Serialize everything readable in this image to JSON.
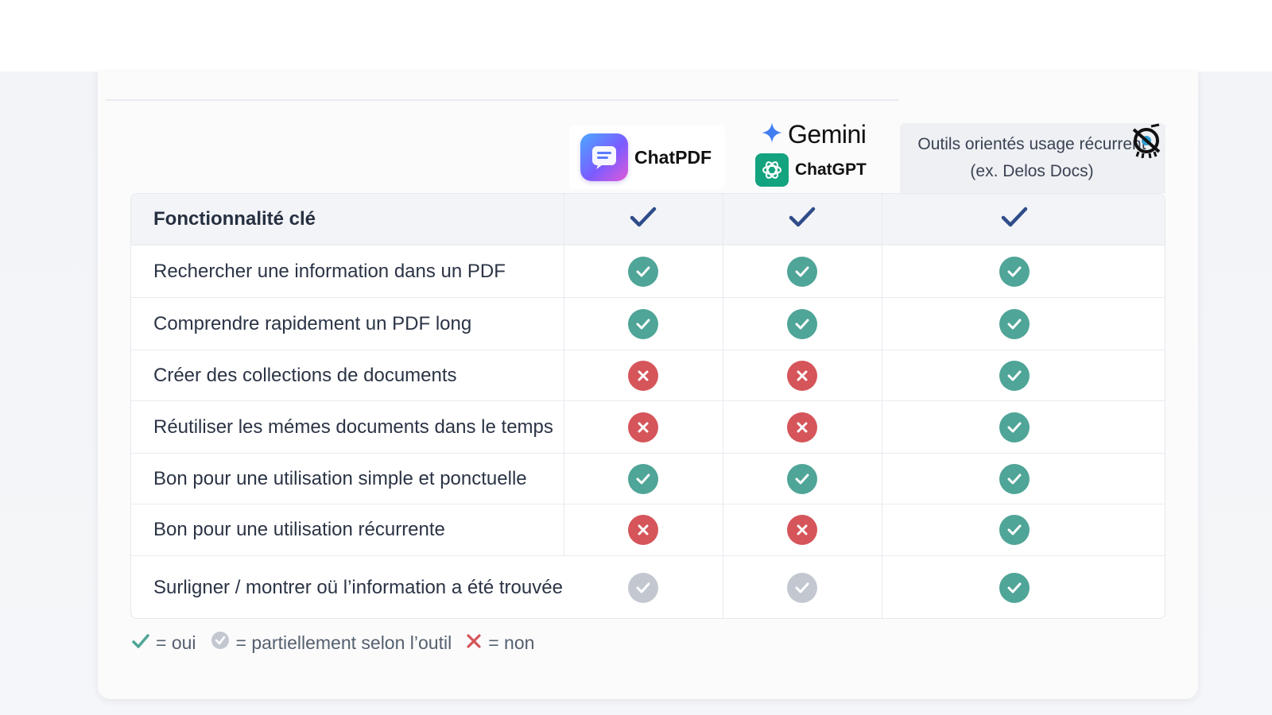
{
  "header": {
    "chatpdf_label": "ChatPDF",
    "gemini_label": "Gemini",
    "chatgpt_label": "ChatGPT",
    "outils_label": "Outils orientés usage récurrent (ex. Delos Docs)"
  },
  "table": {
    "rows": [
      {
        "label": "Fonctionnalité clé",
        "values": [
          "yes-header",
          "yes-header",
          "yes-header"
        ]
      },
      {
        "label": "Rechercher une information dans un PDF",
        "values": [
          "yes",
          "yes",
          "yes"
        ]
      },
      {
        "label": "Comprendre rapidement un PDF long",
        "values": [
          "yes",
          "yes",
          "yes"
        ]
      },
      {
        "label": "Créer des collections de documents",
        "values": [
          "no",
          "no",
          "yes"
        ]
      },
      {
        "label": "Réutiliser les mémes documents dans le temps",
        "values": [
          "no",
          "no",
          "yes"
        ]
      },
      {
        "label": "Bon pour une utilisation simple et ponctuelle",
        "values": [
          "yes",
          "yes",
          "yes"
        ]
      },
      {
        "label": "Bon pour une utilisation récurrente",
        "values": [
          "no",
          "no",
          "yes"
        ]
      },
      {
        "label": "Surligner / montrer oü l’information a été trouvée",
        "values": [
          "partial",
          "partial",
          "yes"
        ]
      }
    ]
  },
  "legend": {
    "yes_label": "= oui",
    "partial_label": "= partiellement selon l’outil",
    "no_label": "= non"
  },
  "colors": {
    "yes": "#4fa597",
    "no": "#d5555a",
    "partial": "#c3c8d0",
    "header_check": "#2f4c8a"
  }
}
